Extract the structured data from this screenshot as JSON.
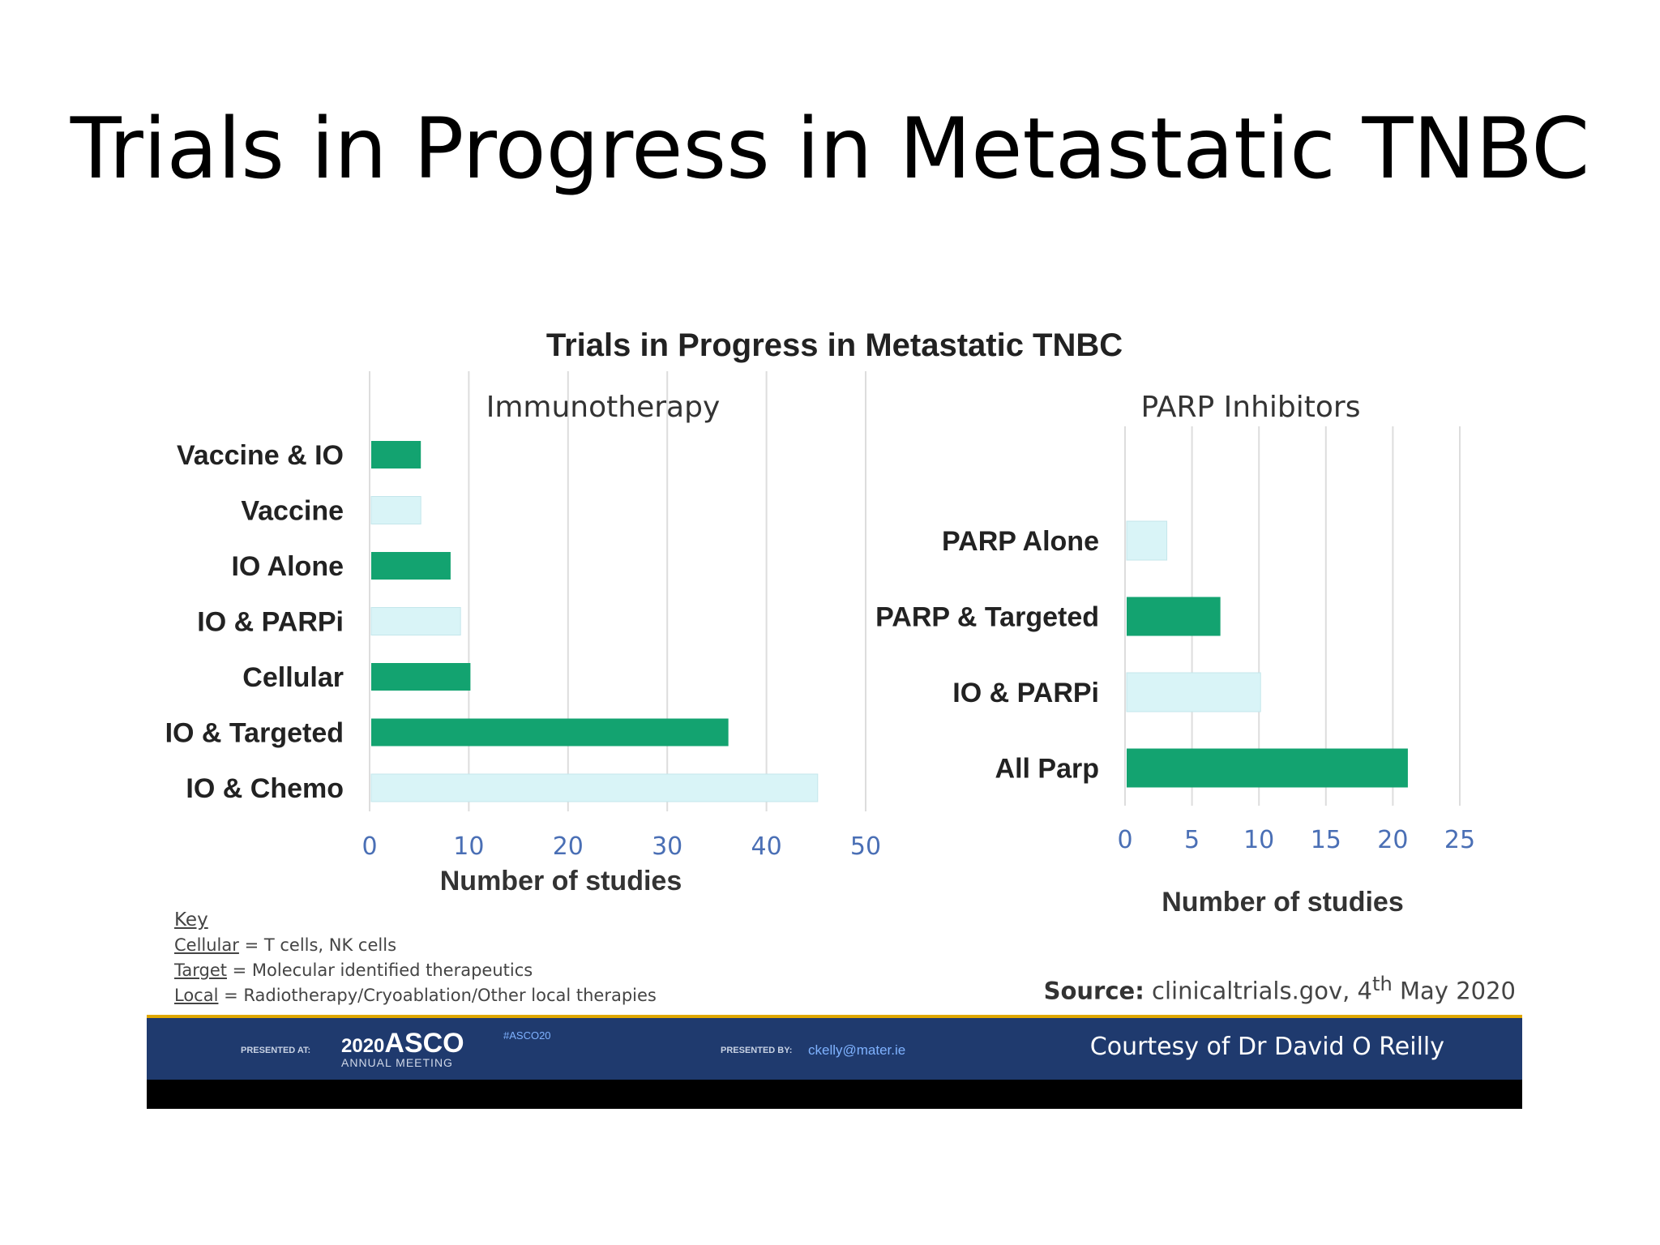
{
  "slide_title": "Trials in Progress in Metastatic TNBC",
  "colors": {
    "green": "#13a370",
    "light": "#d9f4f7",
    "grid": "#dddddd",
    "tick": "#4a6fb5",
    "label": "#222222"
  },
  "chart_data": [
    {
      "type": "bar",
      "orientation": "horizontal",
      "title": "Trials in Progress in Metastatic TNBC",
      "subtitle": "Immunotherapy",
      "categories": [
        "Vaccine & IO",
        "Vaccine",
        "IO Alone",
        "IO & PARPi",
        "Cellular",
        "IO & Targeted",
        "IO & Chemo"
      ],
      "values": [
        5,
        5,
        8,
        9,
        10,
        36,
        45
      ],
      "bar_colors": [
        "#13a370",
        "#d9f4f7",
        "#13a370",
        "#d9f4f7",
        "#13a370",
        "#13a370",
        "#d9f4f7"
      ],
      "xlabel": "Number of studies",
      "xlim": [
        0,
        50
      ],
      "xticks": [
        0,
        10,
        20,
        30,
        40,
        50
      ],
      "grid": true
    },
    {
      "type": "bar",
      "orientation": "horizontal",
      "subtitle": "PARP Inhibitors",
      "categories": [
        "PARP Alone",
        "PARP & Targeted",
        "IO & PARPi",
        "All Parp"
      ],
      "values": [
        3,
        7,
        10,
        21
      ],
      "bar_colors": [
        "#d9f4f7",
        "#13a370",
        "#d9f4f7",
        "#13a370"
      ],
      "xlabel": "Number of studies",
      "xlim": [
        0,
        25
      ],
      "xticks": [
        0,
        5,
        10,
        15,
        20,
        25
      ],
      "grid": true
    }
  ],
  "key": {
    "heading": "Key",
    "items": [
      {
        "term": "Cellular",
        "definition": " = T cells, NK cells"
      },
      {
        "term": "Target",
        "definition": " = Molecular identified therapeutics"
      },
      {
        "term": "Local",
        "definition": " = Radiotherapy/Cryoablation/Other local therapies"
      }
    ]
  },
  "source": {
    "label": "Source:",
    "text": " clinicaltrials.gov, 4",
    "sup": "th",
    "text2": " May 2020"
  },
  "footer": {
    "presented_at": "PRESENTED AT:",
    "meeting_year": "2020",
    "meeting_name": "ASCO",
    "meeting_sub": "ANNUAL MEETING",
    "hashtag": "#ASCO20",
    "presented_by": "PRESENTED BY:",
    "email": "ckelly@mater.ie",
    "courtesy": "Courtesy of Dr David O Reilly"
  }
}
